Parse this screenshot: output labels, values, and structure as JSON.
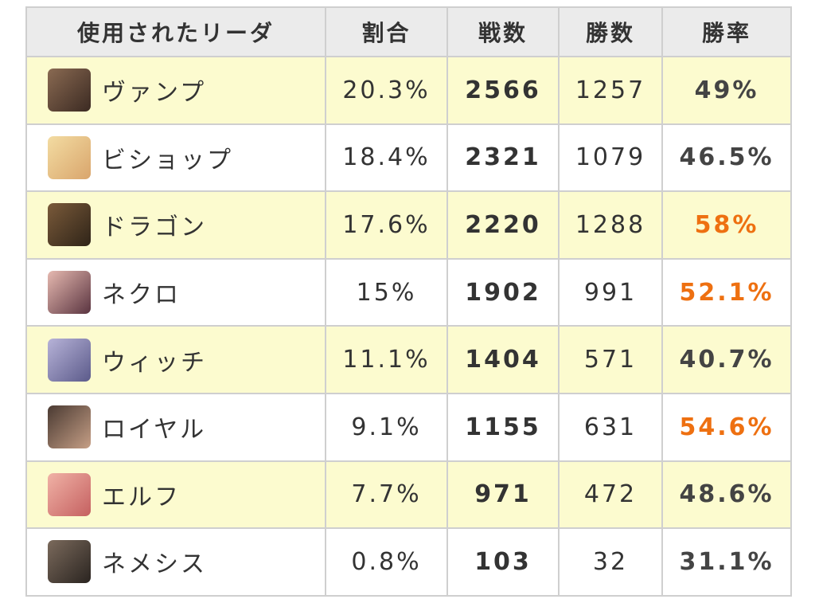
{
  "table": {
    "headers": [
      "使用されたリーダ",
      "割合",
      "戦数",
      "勝数",
      "勝率"
    ],
    "rows": [
      {
        "name": "ヴァンプ",
        "share": "20.3%",
        "battles": 2566,
        "wins": 1257,
        "win_rate": "49%",
        "win_rate_color": "#444444"
      },
      {
        "name": "ビショップ",
        "share": "18.4%",
        "battles": 2321,
        "wins": 1079,
        "win_rate": "46.5%",
        "win_rate_color": "#444444"
      },
      {
        "name": "ドラゴン",
        "share": "17.6%",
        "battles": 2220,
        "wins": 1288,
        "win_rate": "58%",
        "win_rate_color": "#ee7011"
      },
      {
        "name": "ネクロ",
        "share": "15%",
        "battles": 1902,
        "wins": 991,
        "win_rate": "52.1%",
        "win_rate_color": "#ee7011"
      },
      {
        "name": "ウィッチ",
        "share": "11.1%",
        "battles": 1404,
        "wins": 571,
        "win_rate": "40.7%",
        "win_rate_color": "#444444"
      },
      {
        "name": "ロイヤル",
        "share": "9.1%",
        "battles": 1155,
        "wins": 631,
        "win_rate": "54.6%",
        "win_rate_color": "#ee7011"
      },
      {
        "name": "エルフ",
        "share": "7.7%",
        "battles": 971,
        "wins": 472,
        "win_rate": "48.6%",
        "win_rate_color": "#444444"
      },
      {
        "name": "ネメシス",
        "share": "0.8%",
        "battles": 103,
        "wins": 32,
        "win_rate": "31.1%",
        "win_rate_color": "#444444"
      }
    ]
  }
}
